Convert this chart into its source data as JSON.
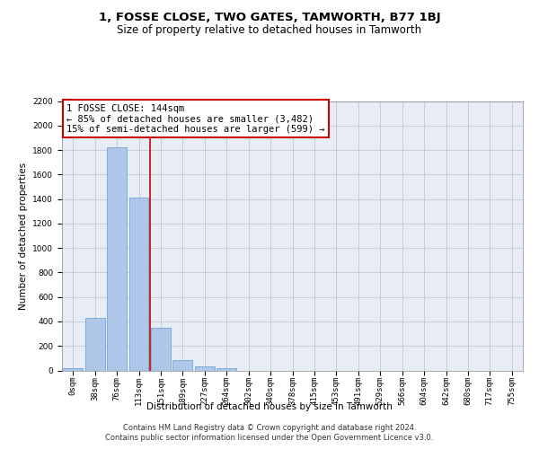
{
  "title": "1, FOSSE CLOSE, TWO GATES, TAMWORTH, B77 1BJ",
  "subtitle": "Size of property relative to detached houses in Tamworth",
  "xlabel": "Distribution of detached houses by size in Tamworth",
  "ylabel": "Number of detached properties",
  "bar_labels": [
    "0sqm",
    "38sqm",
    "76sqm",
    "113sqm",
    "151sqm",
    "189sqm",
    "227sqm",
    "264sqm",
    "302sqm",
    "340sqm",
    "378sqm",
    "415sqm",
    "453sqm",
    "491sqm",
    "529sqm",
    "566sqm",
    "604sqm",
    "642sqm",
    "680sqm",
    "717sqm",
    "755sqm"
  ],
  "bar_values": [
    20,
    430,
    1820,
    1410,
    350,
    85,
    30,
    20,
    0,
    0,
    0,
    0,
    0,
    0,
    0,
    0,
    0,
    0,
    0,
    0,
    0
  ],
  "bar_color": "#aec6e8",
  "bar_edgecolor": "#5b9bd5",
  "vline_x": 3.5,
  "vline_color": "#cc0000",
  "annotation_text": "1 FOSSE CLOSE: 144sqm\n← 85% of detached houses are smaller (3,482)\n15% of semi-detached houses are larger (599) →",
  "annotation_box_color": "#ffffff",
  "annotation_box_edgecolor": "#cc0000",
  "ylim": [
    0,
    2200
  ],
  "yticks": [
    0,
    200,
    400,
    600,
    800,
    1000,
    1200,
    1400,
    1600,
    1800,
    2000,
    2200
  ],
  "grid_color": "#c0c8d8",
  "background_color": "#e8edf5",
  "footer_line1": "Contains HM Land Registry data © Crown copyright and database right 2024.",
  "footer_line2": "Contains public sector information licensed under the Open Government Licence v3.0.",
  "title_fontsize": 9.5,
  "subtitle_fontsize": 8.5,
  "axis_label_fontsize": 7.5,
  "tick_fontsize": 6.5,
  "annotation_fontsize": 7.5,
  "footer_fontsize": 6
}
